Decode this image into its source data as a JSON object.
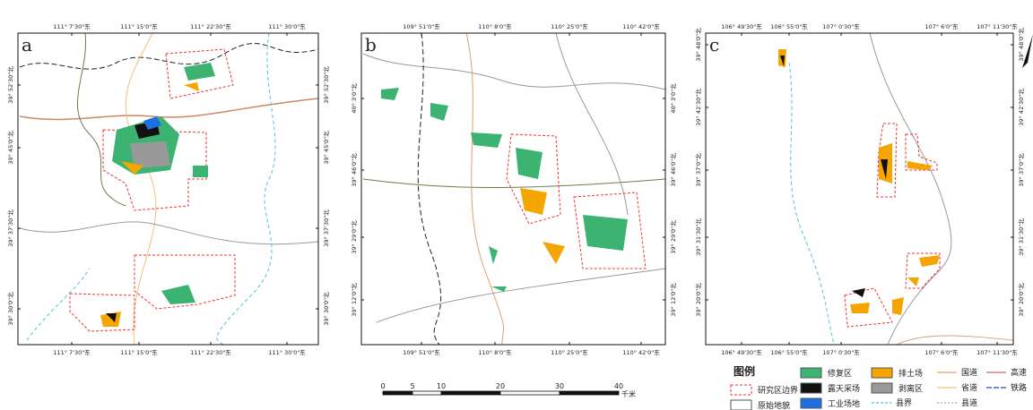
{
  "panels": [
    {
      "label": "a",
      "lon_ticks": [
        "111° 7'30\"东",
        "111° 15'0\"东",
        "111° 22'30\"东",
        "111° 30'0\"东"
      ],
      "lat_ticks": [
        "39° 52'30\"北",
        "39° 45'0\"北",
        "39° 37'30\"北",
        "39° 30'0\"北"
      ]
    },
    {
      "label": "b",
      "lon_ticks": [
        "109° 51'0\"东",
        "110° 8'0\"东",
        "110° 25'0\"东",
        "110° 42'0\"东"
      ],
      "lat_ticks": [
        "40° 3'0\"北",
        "39° 46'0\"北",
        "39° 29'0\"北",
        "39° 12'0\"北"
      ]
    },
    {
      "label": "c",
      "lon_ticks": [
        "106° 49'30\"东",
        "106° 55'0\"东",
        "107° 0'30\"东",
        "107° 6'0\"东",
        "107° 11'30\"东"
      ],
      "lat_ticks": [
        "39° 48'0\"北",
        "39° 42'30\"北",
        "39° 37'0\"北",
        "39° 31'30\"北",
        "39° 20'0\"北"
      ]
    }
  ],
  "scale_bar": {
    "ticks": [
      "0",
      "5",
      "10",
      "20",
      "30",
      "40"
    ],
    "unit": "千米"
  },
  "legend": {
    "title": "图例",
    "items": [
      "研究区边界",
      "原始地貌",
      "修复区",
      "露天采场",
      "工业场地",
      "排土场",
      "剥离区",
      "县界",
      "国道",
      "省道",
      "县道",
      "高速",
      "铁路"
    ]
  }
}
